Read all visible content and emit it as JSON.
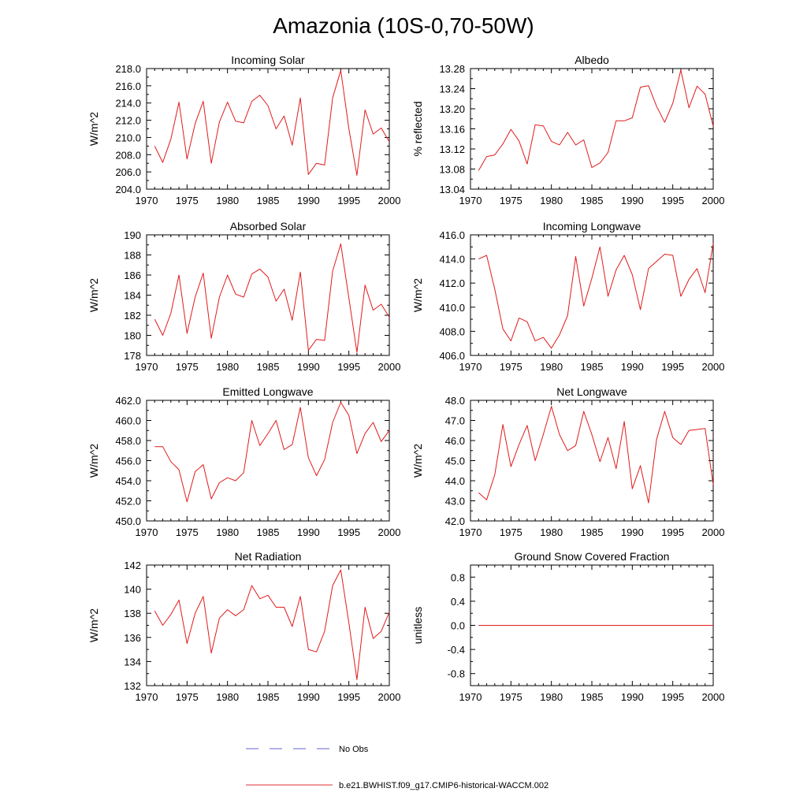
{
  "figure": {
    "title": "Amazonia (10S-0,70-50W)",
    "legend": {
      "items": [
        {
          "label": "No Obs",
          "color": "#6666cc",
          "style": "dashed"
        },
        {
          "label": "b.e21.BWHIST.f09_g17.CMIP6-historical-WACCM.002",
          "color": "#e33030",
          "style": "solid"
        }
      ]
    },
    "colors": {
      "series": "#e01b1b",
      "axis": "#000000"
    }
  },
  "chart_data": [
    {
      "type": "line",
      "title": "Incoming Solar",
      "ylabel": "W/m^2",
      "xlim": [
        1970,
        2000
      ],
      "ylim": [
        204,
        218
      ],
      "xticks": [
        1970,
        1975,
        1980,
        1985,
        1990,
        1995,
        2000
      ],
      "xtick_labels": [
        "1970",
        "1975",
        "1980",
        "1985",
        "1990",
        "1995",
        "2000"
      ],
      "yticks": [
        204,
        206,
        208,
        210,
        212,
        214,
        216,
        218
      ],
      "ytick_labels": [
        "204.0",
        "206.0",
        "208.0",
        "210.0",
        "212.0",
        "214.0",
        "216.0",
        "218.0"
      ],
      "series": [
        {
          "name": "b.e21.BWHIST.f09_g17.CMIP6-historical-WACCM.002",
          "x": [
            1971,
            1972,
            1973,
            1974,
            1975,
            1976,
            1977,
            1978,
            1979,
            1980,
            1981,
            1982,
            1983,
            1984,
            1985,
            1986,
            1987,
            1988,
            1989,
            1990,
            1991,
            1992,
            1993,
            1994,
            1995,
            1996,
            1997,
            1998,
            1999,
            2000
          ],
          "y": [
            209.0,
            207.1,
            209.8,
            214.1,
            207.5,
            211.6,
            214.2,
            207.0,
            211.8,
            214.1,
            211.9,
            211.7,
            214.2,
            214.9,
            213.7,
            211.0,
            212.5,
            209.1,
            214.6,
            205.7,
            207.0,
            206.8,
            214.6,
            217.8,
            211.0,
            205.6,
            213.2,
            210.4,
            211.1,
            209.5
          ]
        }
      ]
    },
    {
      "type": "line",
      "title": "Albedo",
      "ylabel": "% reflected",
      "xlim": [
        1970,
        2000
      ],
      "ylim": [
        13.04,
        13.28
      ],
      "xticks": [
        1970,
        1975,
        1980,
        1985,
        1990,
        1995,
        2000
      ],
      "xtick_labels": [
        "1970",
        "1975",
        "1980",
        "1985",
        "1990",
        "1995",
        "2000"
      ],
      "yticks": [
        13.04,
        13.08,
        13.12,
        13.16,
        13.2,
        13.24,
        13.28
      ],
      "ytick_labels": [
        "13.04",
        "13.08",
        "13.12",
        "13.16",
        "13.20",
        "13.24",
        "13.28"
      ],
      "series": [
        {
          "name": "b.e21.BWHIST.f09_g17.CMIP6-historical-WACCM.002",
          "x": [
            1971,
            1972,
            1973,
            1974,
            1975,
            1976,
            1977,
            1978,
            1979,
            1980,
            1981,
            1982,
            1983,
            1984,
            1985,
            1986,
            1987,
            1988,
            1989,
            1990,
            1991,
            1992,
            1993,
            1994,
            1995,
            1996,
            1997,
            1998,
            1999,
            2000
          ],
          "y": [
            13.077,
            13.105,
            13.108,
            13.13,
            13.159,
            13.136,
            13.09,
            13.168,
            13.166,
            13.135,
            13.128,
            13.153,
            13.128,
            13.138,
            13.083,
            13.092,
            13.113,
            13.176,
            13.176,
            13.182,
            13.243,
            13.246,
            13.205,
            13.173,
            13.211,
            13.277,
            13.202,
            13.245,
            13.229,
            13.165
          ]
        }
      ]
    },
    {
      "type": "line",
      "title": "Absorbed Solar",
      "ylabel": "W/m^2",
      "xlim": [
        1970,
        2000
      ],
      "ylim": [
        178,
        190
      ],
      "xticks": [
        1970,
        1975,
        1980,
        1985,
        1990,
        1995,
        2000
      ],
      "xtick_labels": [
        "1970",
        "1975",
        "1980",
        "1985",
        "1990",
        "1995",
        "2000"
      ],
      "yticks": [
        178,
        180,
        182,
        184,
        186,
        188,
        190
      ],
      "ytick_labels": [
        "178",
        "180",
        "182",
        "184",
        "186",
        "188",
        "190"
      ],
      "series": [
        {
          "name": "b.e21.BWHIST.f09_g17.CMIP6-historical-WACCM.002",
          "x": [
            1971,
            1972,
            1973,
            1974,
            1975,
            1976,
            1977,
            1978,
            1979,
            1980,
            1981,
            1982,
            1983,
            1984,
            1985,
            1986,
            1987,
            1988,
            1989,
            1990,
            1991,
            1992,
            1993,
            1994,
            1995,
            1996,
            1997,
            1998,
            1999,
            2000
          ],
          "y": [
            181.6,
            180.0,
            182.2,
            186.0,
            180.2,
            183.8,
            186.2,
            179.7,
            183.8,
            186.0,
            184.1,
            183.8,
            186.1,
            186.6,
            185.8,
            183.4,
            184.6,
            181.5,
            186.3,
            178.5,
            179.6,
            179.5,
            186.4,
            189.1,
            183.7,
            178.3,
            185.0,
            182.5,
            183.1,
            181.8
          ]
        }
      ]
    },
    {
      "type": "line",
      "title": "Incoming Longwave",
      "ylabel": "W/m^2",
      "xlim": [
        1970,
        2000
      ],
      "ylim": [
        406,
        416
      ],
      "xticks": [
        1970,
        1975,
        1980,
        1985,
        1990,
        1995,
        2000
      ],
      "xtick_labels": [
        "1970",
        "1975",
        "1980",
        "1985",
        "1990",
        "1995",
        "2000"
      ],
      "yticks": [
        406,
        408,
        410,
        412,
        414,
        416
      ],
      "ytick_labels": [
        "406.0",
        "408.0",
        "410.0",
        "412.0",
        "414.0",
        "416.0"
      ],
      "series": [
        {
          "name": "b.e21.BWHIST.f09_g17.CMIP6-historical-WACCM.002",
          "x": [
            1971,
            1972,
            1973,
            1974,
            1975,
            1976,
            1977,
            1978,
            1979,
            1980,
            1981,
            1982,
            1983,
            1984,
            1985,
            1986,
            1987,
            1988,
            1989,
            1990,
            1991,
            1992,
            1993,
            1994,
            1995,
            1996,
            1997,
            1998,
            1999,
            2000
          ],
          "y": [
            414.0,
            414.3,
            411.5,
            408.2,
            407.2,
            409.1,
            408.8,
            407.2,
            407.5,
            406.6,
            407.7,
            409.3,
            414.2,
            410.1,
            412.4,
            415.0,
            410.9,
            413.1,
            414.3,
            412.7,
            409.8,
            413.2,
            413.8,
            414.4,
            414.3,
            410.9,
            412.3,
            413.2,
            411.2,
            415.3
          ]
        }
      ]
    },
    {
      "type": "line",
      "title": "Emitted Longwave",
      "ylabel": "W/m^2",
      "xlim": [
        1970,
        2000
      ],
      "ylim": [
        450,
        462
      ],
      "xticks": [
        1970,
        1975,
        1980,
        1985,
        1990,
        1995,
        2000
      ],
      "xtick_labels": [
        "1970",
        "1975",
        "1980",
        "1985",
        "1990",
        "1995",
        "2000"
      ],
      "yticks": [
        450,
        452,
        454,
        456,
        458,
        460,
        462
      ],
      "ytick_labels": [
        "450.0",
        "452.0",
        "454.0",
        "456.0",
        "458.0",
        "460.0",
        "462.0"
      ],
      "series": [
        {
          "name": "b.e21.BWHIST.f09_g17.CMIP6-historical-WACCM.002",
          "x": [
            1971,
            1972,
            1973,
            1974,
            1975,
            1976,
            1977,
            1978,
            1979,
            1980,
            1981,
            1982,
            1983,
            1984,
            1985,
            1986,
            1987,
            1988,
            1989,
            1990,
            1991,
            1992,
            1993,
            1994,
            1995,
            1996,
            1997,
            1998,
            1999,
            2000
          ],
          "y": [
            457.4,
            457.4,
            455.9,
            455.1,
            451.9,
            454.9,
            455.6,
            452.2,
            453.8,
            454.3,
            454.0,
            454.8,
            460.0,
            457.5,
            458.7,
            460.0,
            457.1,
            457.6,
            461.3,
            456.3,
            454.5,
            456.1,
            459.8,
            461.8,
            460.5,
            456.7,
            458.7,
            459.8,
            457.9,
            459.0
          ]
        }
      ]
    },
    {
      "type": "line",
      "title": "Net Longwave",
      "ylabel": "W/m^2",
      "xlim": [
        1970,
        2000
      ],
      "ylim": [
        42,
        48
      ],
      "xticks": [
        1970,
        1975,
        1980,
        1985,
        1990,
        1995,
        2000
      ],
      "xtick_labels": [
        "1970",
        "1975",
        "1980",
        "1985",
        "1990",
        "1995",
        "2000"
      ],
      "yticks": [
        42,
        43,
        44,
        45,
        46,
        47,
        48
      ],
      "ytick_labels": [
        "42.0",
        "43.0",
        "44.0",
        "45.0",
        "46.0",
        "47.0",
        "48.0"
      ],
      "series": [
        {
          "name": "b.e21.BWHIST.f09_g17.CMIP6-historical-WACCM.002",
          "x": [
            1971,
            1972,
            1973,
            1974,
            1975,
            1976,
            1977,
            1978,
            1979,
            1980,
            1981,
            1982,
            1983,
            1984,
            1985,
            1986,
            1987,
            1988,
            1989,
            1990,
            1991,
            1992,
            1993,
            1994,
            1995,
            1996,
            1997,
            1998,
            1999,
            2000
          ],
          "y": [
            43.4,
            43.05,
            44.3,
            46.8,
            44.7,
            45.8,
            46.75,
            45.0,
            46.3,
            47.7,
            46.3,
            45.5,
            45.75,
            47.45,
            46.3,
            44.95,
            46.15,
            44.6,
            46.95,
            43.6,
            44.75,
            42.9,
            46.05,
            47.45,
            46.15,
            45.8,
            46.5,
            46.55,
            46.6,
            43.8
          ]
        }
      ]
    },
    {
      "type": "line",
      "title": "Net Radiation",
      "ylabel": "W/m^2",
      "xlim": [
        1970,
        2000
      ],
      "ylim": [
        132,
        142
      ],
      "xticks": [
        1970,
        1975,
        1980,
        1985,
        1990,
        1995,
        2000
      ],
      "xtick_labels": [
        "1970",
        "1975",
        "1980",
        "1985",
        "1990",
        "1995",
        "2000"
      ],
      "yticks": [
        132,
        134,
        136,
        138,
        140,
        142
      ],
      "ytick_labels": [
        "132",
        "134",
        "136",
        "138",
        "140",
        "142"
      ],
      "series": [
        {
          "name": "b.e21.BWHIST.f09_g17.CMIP6-historical-WACCM.002",
          "x": [
            1971,
            1972,
            1973,
            1974,
            1975,
            1976,
            1977,
            1978,
            1979,
            1980,
            1981,
            1982,
            1983,
            1984,
            1985,
            1986,
            1987,
            1988,
            1989,
            1990,
            1991,
            1992,
            1993,
            1994,
            1995,
            1996,
            1997,
            1998,
            1999,
            2000
          ],
          "y": [
            138.2,
            137.0,
            137.9,
            139.1,
            135.5,
            138.0,
            139.4,
            134.7,
            137.6,
            138.3,
            137.8,
            138.3,
            140.3,
            139.2,
            139.5,
            138.5,
            138.5,
            136.9,
            139.4,
            135.0,
            134.8,
            136.5,
            140.3,
            141.6,
            137.2,
            132.5,
            138.5,
            135.9,
            136.5,
            138.1
          ]
        }
      ]
    },
    {
      "type": "line",
      "title": "Ground Snow Covered Fraction",
      "ylabel": "unitless",
      "xlim": [
        1970,
        2000
      ],
      "ylim": [
        -1.0,
        1.0
      ],
      "xticks": [
        1970,
        1975,
        1980,
        1985,
        1990,
        1995,
        2000
      ],
      "xtick_labels": [
        "1970",
        "1975",
        "1980",
        "1985",
        "1990",
        "1995",
        "2000"
      ],
      "yticks": [
        -0.8,
        -0.4,
        0.0,
        0.4,
        0.8
      ],
      "ytick_labels": [
        "-0.8",
        "-0.4",
        "0.0",
        "0.4",
        "0.8"
      ],
      "series": [
        {
          "name": "b.e21.BWHIST.f09_g17.CMIP6-historical-WACCM.002",
          "x": [
            1971,
            2000
          ],
          "y": [
            0.0,
            0.0
          ]
        }
      ]
    }
  ]
}
